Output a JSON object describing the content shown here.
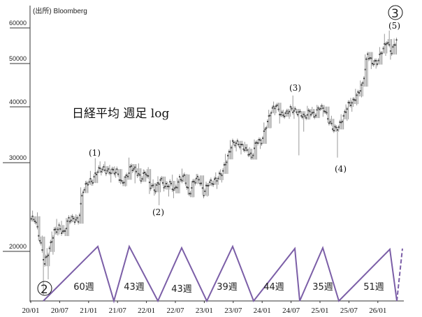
{
  "source": "(出所) Bloomberg",
  "chart_data": {
    "type": "candlestick-weekly",
    "title": "日経平均 週足 log",
    "yscale": "log",
    "ylim": [
      16000,
      62000
    ],
    "yticks": [
      20000,
      30000,
      40000,
      50000,
      60000
    ],
    "ytick_labels": [
      "20000",
      "30000",
      "40000",
      "50000",
      "60000"
    ],
    "xtick_labels": [
      "20/01",
      "20/07",
      "21/01",
      "21/07",
      "22/01",
      "22/07",
      "23/01",
      "23/07",
      "24/01",
      "24/07",
      "25/01",
      "25/07",
      "26/01"
    ],
    "grid": false,
    "monthly_ohlc_fields": [
      "month",
      "high",
      "low",
      "close"
    ],
    "monthly": [
      [
        "20/01",
        24100,
        22900,
        23205
      ],
      [
        "20/02",
        23900,
        21000,
        21143
      ],
      [
        "20/03",
        21500,
        16358,
        18917
      ],
      [
        "20/04",
        20300,
        17600,
        20193
      ],
      [
        "20/05",
        21900,
        19700,
        21877
      ],
      [
        "20/06",
        23200,
        21500,
        22288
      ],
      [
        "20/07",
        23000,
        21700,
        21710
      ],
      [
        "20/08",
        23300,
        22000,
        23139
      ],
      [
        "20/09",
        23600,
        22900,
        23185
      ],
      [
        "20/10",
        23700,
        22900,
        22977
      ],
      [
        "20/11",
        26800,
        23000,
        26433
      ],
      [
        "20/12",
        27600,
        26100,
        27444
      ],
      [
        "21/01",
        28900,
        27000,
        27663
      ],
      [
        "21/02",
        30700,
        27500,
        28966
      ],
      [
        "21/03",
        30200,
        28300,
        29178
      ],
      [
        "21/04",
        30200,
        28400,
        28812
      ],
      [
        "21/05",
        29700,
        27400,
        28860
      ],
      [
        "21/06",
        29500,
        28000,
        28791
      ],
      [
        "21/07",
        28900,
        27200,
        27283
      ],
      [
        "21/08",
        28200,
        26900,
        28089
      ],
      [
        "21/09",
        30800,
        28100,
        29452
      ],
      [
        "21/10",
        29500,
        27300,
        28892
      ],
      [
        "21/11",
        29900,
        27600,
        27821
      ],
      [
        "21/12",
        29100,
        27800,
        28791
      ],
      [
        "22/01",
        29400,
        26000,
        27001
      ],
      [
        "22/02",
        27800,
        25800,
        26526
      ],
      [
        "22/03",
        28200,
        24700,
        27821
      ],
      [
        "22/04",
        27800,
        26300,
        26847
      ],
      [
        "22/05",
        27500,
        25700,
        27279
      ],
      [
        "22/06",
        28400,
        25500,
        26393
      ],
      [
        "22/07",
        28000,
        26100,
        27801
      ],
      [
        "22/08",
        29200,
        27600,
        28091
      ],
      [
        "22/09",
        28500,
        25900,
        25937
      ],
      [
        "22/10",
        27600,
        25600,
        27587
      ],
      [
        "22/11",
        28500,
        27200,
        27968
      ],
      [
        "22/12",
        28300,
        25900,
        26094
      ],
      [
        "23/01",
        27500,
        25700,
        27327
      ],
      [
        "23/02",
        27700,
        27000,
        27445
      ],
      [
        "23/03",
        28700,
        26600,
        28041
      ],
      [
        "23/04",
        29100,
        27400,
        28856
      ],
      [
        "23/05",
        31400,
        28900,
        30887
      ],
      [
        "23/06",
        33700,
        31000,
        33189
      ],
      [
        "23/07",
        33400,
        31800,
        33172
      ],
      [
        "23/08",
        33000,
        31300,
        32619
      ],
      [
        "23/09",
        33400,
        31800,
        31857
      ],
      [
        "23/10",
        32500,
        30500,
        30858
      ],
      [
        "23/11",
        33800,
        31000,
        33486
      ],
      [
        "23/12",
        33800,
        32200,
        33464
      ],
      [
        "24/01",
        36900,
        33200,
        36286
      ],
      [
        "24/02",
        39400,
        35800,
        39166
      ],
      [
        "24/03",
        41100,
        38300,
        40369
      ],
      [
        "24/04",
        40300,
        36700,
        38405
      ],
      [
        "24/05",
        39400,
        37600,
        38487
      ],
      [
        "24/06",
        39600,
        37600,
        39583
      ],
      [
        "24/07",
        42400,
        37600,
        39101
      ],
      [
        "24/08",
        38700,
        31156,
        38647
      ],
      [
        "24/09",
        39000,
        35200,
        37919
      ],
      [
        "24/10",
        40200,
        37600,
        39081
      ],
      [
        "24/11",
        40000,
        37800,
        38208
      ],
      [
        "24/12",
        40400,
        37900,
        39894
      ],
      [
        "25/01",
        40300,
        38000,
        39572
      ],
      [
        "25/02",
        39700,
        36800,
        37155
      ],
      [
        "25/03",
        38200,
        35500,
        35617
      ],
      [
        "25/04",
        36300,
        30800,
        36045
      ],
      [
        "25/05",
        38500,
        35600,
        37965
      ],
      [
        "25/06",
        40500,
        37200,
        40487
      ],
      [
        "25/07",
        41900,
        39000,
        41069
      ],
      [
        "25/08",
        43900,
        40300,
        42718
      ],
      [
        "25/09",
        45800,
        42000,
        44932
      ],
      [
        "25/10",
        52400,
        44500,
        52411
      ],
      [
        "25/11",
        52600,
        48600,
        50253
      ],
      [
        "25/12",
        51000,
        48700,
        50339
      ],
      [
        "26/01",
        54400,
        50000,
        53300
      ],
      [
        "26/02",
        58200,
        52000,
        56000
      ],
      [
        "26/03",
        59200,
        51000,
        53000
      ],
      [
        "26/04",
        56800,
        52400,
        56500
      ]
    ],
    "annotations": {
      "waves": [
        "(1)",
        "(2)",
        "(3)",
        "(4)",
        "(5)"
      ],
      "circled": [
        "②",
        "③"
      ],
      "cycle_lengths": [
        "60週",
        "43週",
        "43週",
        "39週",
        "44週",
        "35週",
        "51週"
      ]
    },
    "cycle_color": "#7B5EA7",
    "candle_color": "#444444"
  }
}
